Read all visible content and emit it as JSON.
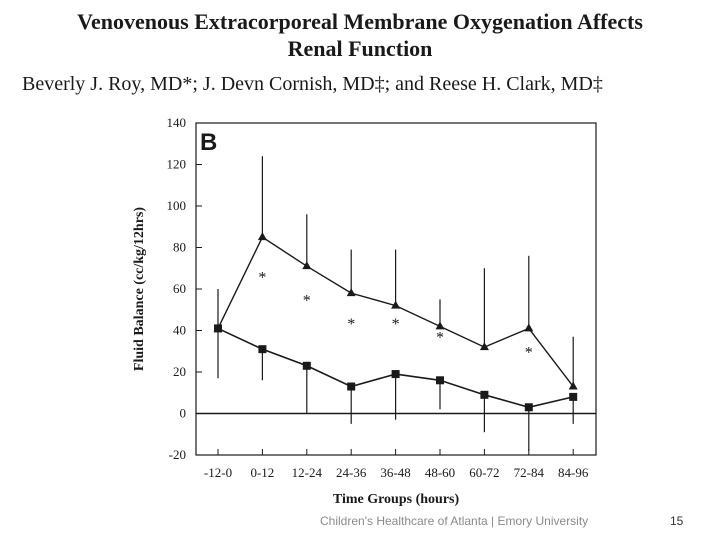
{
  "slide": {
    "title_line1": "Venovenous Extracorporeal Membrane Oxygenation Affects",
    "title_line2": "Renal Function",
    "authors": "Beverly J. Roy, MD*; J. Devn Cornish, MD‡; and Reese H. Clark, MD‡",
    "footer": "Children's Healthcare of Atlanta | Emory University",
    "slide_number": "15"
  },
  "chart_data": {
    "type": "line",
    "panel_label": "B",
    "xlabel": "Time Groups (hours)",
    "ylabel": "Fluid Balance (cc/kg/12hrs)",
    "ylim": [
      -20,
      140
    ],
    "yticks": [
      -20,
      0,
      20,
      40,
      60,
      80,
      100,
      120,
      140
    ],
    "categories": [
      "-12-0",
      "0-12",
      "12-24",
      "24-36",
      "36-48",
      "48-60",
      "60-72",
      "72-84",
      "84-96"
    ],
    "series": [
      {
        "name": "triangle series",
        "marker": "triangle",
        "values": [
          41,
          85,
          71,
          58,
          52,
          42,
          32,
          41,
          13
        ],
        "error_upper": [
          60,
          124,
          96,
          79,
          79,
          55,
          70,
          76,
          37
        ],
        "significance": [
          "",
          "*",
          "*",
          "*",
          "*",
          "*",
          "",
          "*",
          ""
        ]
      },
      {
        "name": "square series",
        "marker": "square",
        "values": [
          41,
          31,
          23,
          13,
          19,
          16,
          9,
          3,
          8
        ],
        "error_lower": [
          17,
          16,
          0,
          -5,
          -3,
          2,
          -9,
          -18,
          -5
        ]
      }
    ],
    "reference_line": 0,
    "grid": false
  }
}
